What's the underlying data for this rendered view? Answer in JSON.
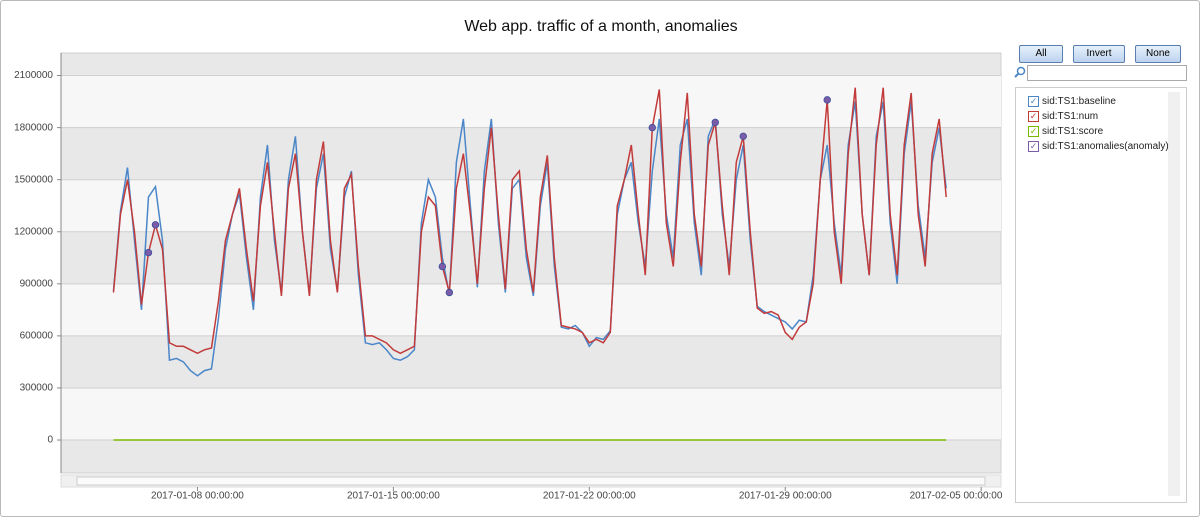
{
  "chart_data": {
    "type": "line",
    "title": "Web app. traffic of a month, anomalies",
    "x": [
      "2017-01-05 00:00:00",
      "2017-01-05 06:00:00",
      "2017-01-05 12:00:00",
      "2017-01-05 18:00:00",
      "2017-01-06 00:00:00",
      "2017-01-06 06:00:00",
      "2017-01-06 12:00:00",
      "2017-01-06 18:00:00",
      "2017-01-07 00:00:00",
      "2017-01-07 06:00:00",
      "2017-01-07 12:00:00",
      "2017-01-07 18:00:00",
      "2017-01-08 00:00:00",
      "2017-01-08 06:00:00",
      "2017-01-08 12:00:00",
      "2017-01-08 18:00:00",
      "2017-01-09 00:00:00",
      "2017-01-09 06:00:00",
      "2017-01-09 12:00:00",
      "2017-01-09 18:00:00",
      "2017-01-10 00:00:00",
      "2017-01-10 06:00:00",
      "2017-01-10 12:00:00",
      "2017-01-10 18:00:00",
      "2017-01-11 00:00:00",
      "2017-01-11 06:00:00",
      "2017-01-11 12:00:00",
      "2017-01-11 18:00:00",
      "2017-01-12 00:00:00",
      "2017-01-12 06:00:00",
      "2017-01-12 12:00:00",
      "2017-01-12 18:00:00",
      "2017-01-13 00:00:00",
      "2017-01-13 06:00:00",
      "2017-01-13 12:00:00",
      "2017-01-13 18:00:00",
      "2017-01-14 00:00:00",
      "2017-01-14 06:00:00",
      "2017-01-14 12:00:00",
      "2017-01-14 18:00:00",
      "2017-01-15 00:00:00",
      "2017-01-15 06:00:00",
      "2017-01-15 12:00:00",
      "2017-01-15 18:00:00",
      "2017-01-16 00:00:00",
      "2017-01-16 06:00:00",
      "2017-01-16 12:00:00",
      "2017-01-16 18:00:00",
      "2017-01-17 00:00:00",
      "2017-01-17 06:00:00",
      "2017-01-17 12:00:00",
      "2017-01-17 18:00:00",
      "2017-01-18 00:00:00",
      "2017-01-18 06:00:00",
      "2017-01-18 12:00:00",
      "2017-01-18 18:00:00",
      "2017-01-19 00:00:00",
      "2017-01-19 06:00:00",
      "2017-01-19 12:00:00",
      "2017-01-19 18:00:00",
      "2017-01-20 00:00:00",
      "2017-01-20 06:00:00",
      "2017-01-20 12:00:00",
      "2017-01-20 18:00:00",
      "2017-01-21 00:00:00",
      "2017-01-21 06:00:00",
      "2017-01-21 12:00:00",
      "2017-01-21 18:00:00",
      "2017-01-22 00:00:00",
      "2017-01-22 06:00:00",
      "2017-01-22 12:00:00",
      "2017-01-22 18:00:00",
      "2017-01-23 00:00:00",
      "2017-01-23 06:00:00",
      "2017-01-23 12:00:00",
      "2017-01-23 18:00:00",
      "2017-01-24 00:00:00",
      "2017-01-24 06:00:00",
      "2017-01-24 12:00:00",
      "2017-01-24 18:00:00",
      "2017-01-25 00:00:00",
      "2017-01-25 06:00:00",
      "2017-01-25 12:00:00",
      "2017-01-25 18:00:00",
      "2017-01-26 00:00:00",
      "2017-01-26 06:00:00",
      "2017-01-26 12:00:00",
      "2017-01-26 18:00:00",
      "2017-01-27 00:00:00",
      "2017-01-27 06:00:00",
      "2017-01-27 12:00:00",
      "2017-01-27 18:00:00",
      "2017-01-28 00:00:00",
      "2017-01-28 06:00:00",
      "2017-01-28 12:00:00",
      "2017-01-28 18:00:00",
      "2017-01-29 00:00:00",
      "2017-01-29 06:00:00",
      "2017-01-29 12:00:00",
      "2017-01-29 18:00:00",
      "2017-01-30 00:00:00",
      "2017-01-30 06:00:00",
      "2017-01-30 12:00:00",
      "2017-01-30 18:00:00",
      "2017-01-31 00:00:00",
      "2017-01-31 06:00:00",
      "2017-01-31 12:00:00",
      "2017-01-31 18:00:00",
      "2017-02-01 00:00:00",
      "2017-02-01 06:00:00",
      "2017-02-01 12:00:00",
      "2017-02-01 18:00:00",
      "2017-02-02 00:00:00",
      "2017-02-02 06:00:00",
      "2017-02-02 12:00:00",
      "2017-02-02 18:00:00",
      "2017-02-03 00:00:00",
      "2017-02-03 06:00:00",
      "2017-02-03 12:00:00",
      "2017-02-03 18:00:00"
    ],
    "series": [
      {
        "name": "sid:TS1:baseline",
        "color": "#4a86c8",
        "values": [
          860000,
          1320000,
          1570000,
          1150000,
          750000,
          1400000,
          1460000,
          1150000,
          460000,
          470000,
          450000,
          400000,
          370000,
          400000,
          410000,
          700000,
          1100000,
          1300000,
          1420000,
          1050000,
          750000,
          1400000,
          1700000,
          1150000,
          850000,
          1500000,
          1750000,
          1200000,
          840000,
          1450000,
          1650000,
          1100000,
          860000,
          1400000,
          1550000,
          950000,
          560000,
          550000,
          560000,
          520000,
          470000,
          460000,
          480000,
          520000,
          1250000,
          1500000,
          1400000,
          1050000,
          840000,
          1600000,
          1850000,
          1350000,
          880000,
          1550000,
          1850000,
          1250000,
          850000,
          1450000,
          1500000,
          1050000,
          830000,
          1350000,
          1600000,
          1000000,
          650000,
          640000,
          660000,
          620000,
          540000,
          590000,
          580000,
          630000,
          1300000,
          1500000,
          1600000,
          1250000,
          1000000,
          1550000,
          1850000,
          1300000,
          1050000,
          1700000,
          1850000,
          1250000,
          950000,
          1750000,
          1850000,
          1300000,
          1000000,
          1500000,
          1700000,
          1150000,
          770000,
          740000,
          720000,
          700000,
          680000,
          640000,
          690000,
          680000,
          950000,
          1500000,
          1700000,
          1250000,
          950000,
          1700000,
          1950000,
          1300000,
          950000,
          1750000,
          1950000,
          1250000,
          900000,
          1650000,
          1950000,
          1350000,
          1050000,
          1600000,
          1800000,
          1450000
        ]
      },
      {
        "name": "sid:TS1:num",
        "color": "#c23b3b",
        "values": [
          850000,
          1300000,
          1500000,
          1200000,
          780000,
          1080000,
          1240000,
          1100000,
          560000,
          540000,
          540000,
          520000,
          500000,
          520000,
          530000,
          800000,
          1150000,
          1300000,
          1450000,
          1100000,
          800000,
          1350000,
          1600000,
          1200000,
          830000,
          1450000,
          1650000,
          1200000,
          830000,
          1500000,
          1720000,
          1150000,
          850000,
          1450000,
          1530000,
          1000000,
          600000,
          600000,
          580000,
          560000,
          520000,
          500000,
          520000,
          540000,
          1200000,
          1400000,
          1350000,
          1000000,
          850000,
          1450000,
          1650000,
          1300000,
          900000,
          1450000,
          1800000,
          1300000,
          870000,
          1500000,
          1550000,
          1100000,
          850000,
          1400000,
          1640000,
          1050000,
          660000,
          650000,
          640000,
          620000,
          560000,
          580000,
          560000,
          620000,
          1350000,
          1500000,
          1700000,
          1300000,
          950000,
          1800000,
          2020000,
          1250000,
          1000000,
          1600000,
          2000000,
          1300000,
          1000000,
          1700000,
          1830000,
          1350000,
          950000,
          1600000,
          1750000,
          1200000,
          760000,
          730000,
          740000,
          720000,
          620000,
          580000,
          650000,
          680000,
          900000,
          1500000,
          1960000,
          1200000,
          900000,
          1650000,
          2030000,
          1300000,
          950000,
          1700000,
          2030000,
          1300000,
          950000,
          1700000,
          2000000,
          1300000,
          1000000,
          1650000,
          1850000,
          1400000
        ]
      },
      {
        "name": "sid:TS1:score",
        "color": "#7ab800",
        "values": [
          0,
          0,
          0,
          0,
          0,
          0,
          0,
          0,
          0,
          0,
          0,
          0,
          0,
          0,
          0,
          0,
          0,
          0,
          0,
          0,
          0,
          0,
          0,
          0,
          0,
          0,
          0,
          0,
          0,
          0,
          0,
          0,
          0,
          0,
          0,
          0,
          0,
          0,
          0,
          0,
          0,
          0,
          0,
          0,
          0,
          0,
          0,
          0,
          0,
          0,
          0,
          0,
          0,
          0,
          0,
          0,
          0,
          0,
          0,
          0,
          0,
          0,
          0,
          0,
          0,
          0,
          0,
          0,
          0,
          0,
          0,
          0,
          0,
          0,
          0,
          0,
          0,
          0,
          0,
          0,
          0,
          0,
          0,
          0,
          0,
          0,
          0,
          0,
          0,
          0,
          0,
          0,
          0,
          0,
          0,
          0,
          0,
          0,
          0,
          0,
          0,
          0,
          0,
          0,
          0,
          0,
          0,
          0,
          0,
          0,
          0,
          0,
          0,
          0,
          0,
          0,
          0,
          0,
          0,
          0
        ]
      },
      {
        "name": "sid:TS1:anomalies(anomaly)",
        "color": "#7a5ca8",
        "x": [
          "2017-01-06 06:00:00",
          "2017-01-06 12:00:00",
          "2017-01-16 18:00:00",
          "2017-01-17 00:00:00",
          "2017-01-24 06:00:00",
          "2017-01-26 12:00:00",
          "2017-01-27 12:00:00",
          "2017-01-30 12:00:00"
        ],
        "values": [
          1080000,
          1240000,
          1000000,
          850000,
          1800000,
          1830000,
          1750000,
          1960000
        ]
      }
    ],
    "xlim": [
      "2017-01-03 03:00:00",
      "2017-02-05 17:00:00"
    ],
    "xticks": [
      "2017-01-08 00:00:00",
      "2017-01-15 00:00:00",
      "2017-01-22 00:00:00",
      "2017-01-29 00:00:00",
      "2017-02-05 00:00:00"
    ],
    "ylim": [
      -190000,
      2230000
    ],
    "yticks": [
      0,
      300000,
      600000,
      900000,
      1200000,
      1500000,
      1800000,
      2100000
    ],
    "grid": true
  },
  "ui": {
    "buttons": [
      "All",
      "Invert",
      "None"
    ]
  }
}
